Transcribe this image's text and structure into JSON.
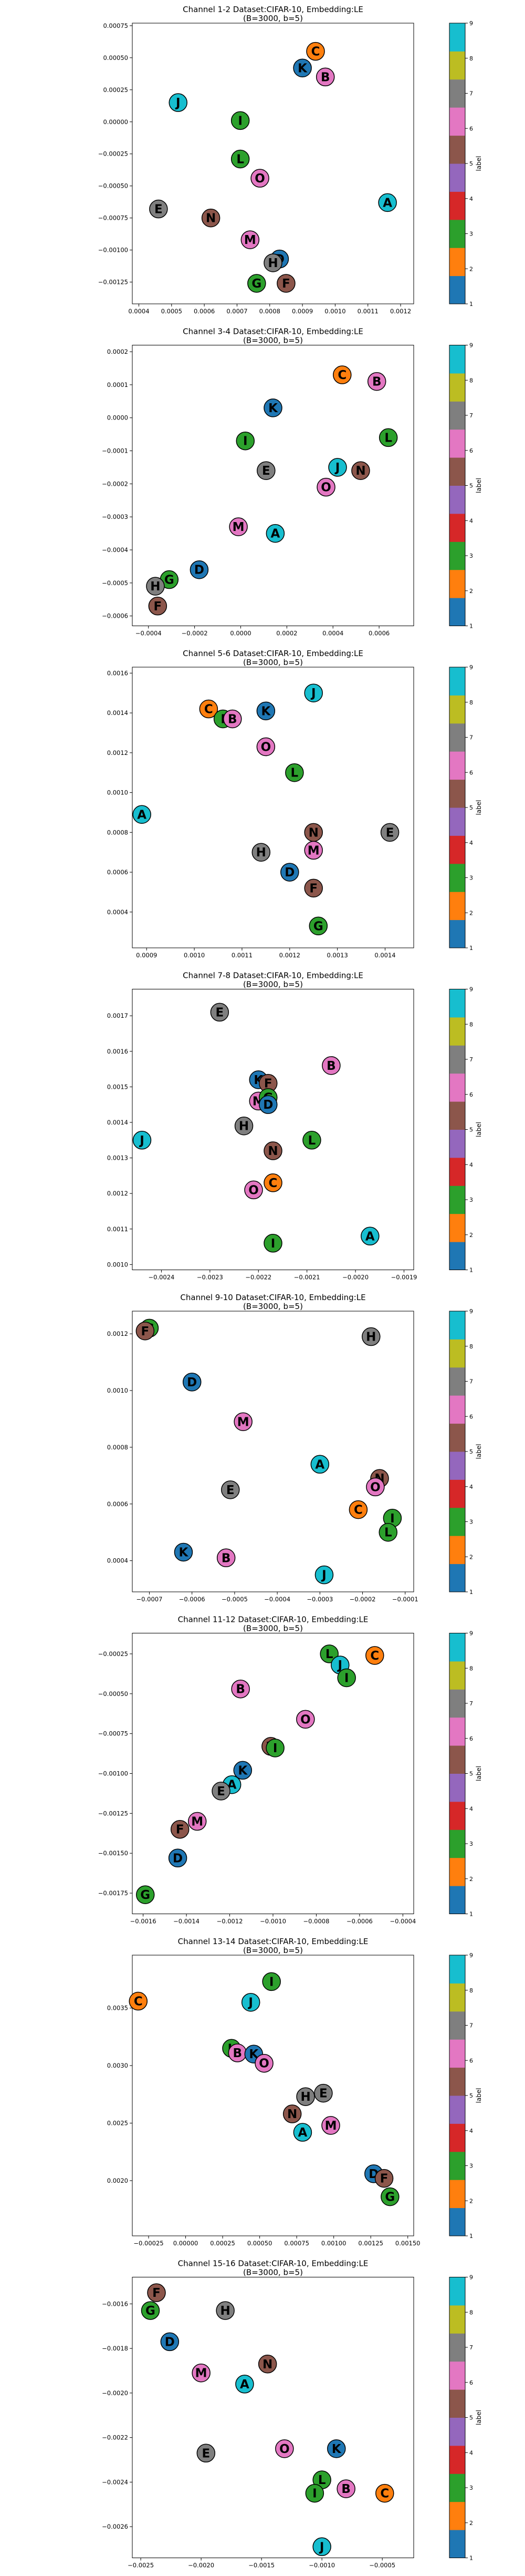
{
  "colorbar": {
    "label": "label",
    "ticks": [
      "1",
      "2",
      "3",
      "4",
      "5",
      "6",
      "7",
      "8",
      "9"
    ],
    "colors": [
      "#1f77b4",
      "#ff7f0e",
      "#2ca02c",
      "#d62728",
      "#9467bd",
      "#8c564b",
      "#e377c2",
      "#7f7f7f",
      "#bcbd22",
      "#17becf"
    ]
  },
  "marker_colors": {
    "A": "#17becf",
    "B": "#e377c2",
    "C": "#ff7f0e",
    "D": "#1f77b4",
    "E": "#7f7f7f",
    "F": "#8c564b",
    "G": "#2ca02c",
    "H": "#7f7f7f",
    "I": "#2ca02c",
    "J": "#17becf",
    "K": "#1f77b4",
    "L": "#2ca02c",
    "M": "#e377c2",
    "N": "#8c564b",
    "O": "#e377c2"
  },
  "chart_data": [
    {
      "type": "scatter",
      "title": "Channel 1-2 Dataset:CIFAR-10, Embedding:LE",
      "subtitle": "(B=3000, b=5)",
      "xlim": [
        0.00038,
        0.00124
      ],
      "ylim": [
        -0.00142,
        0.00077
      ],
      "xticks": [
        0.0004,
        0.0005,
        0.0006,
        0.0007,
        0.0008,
        0.0009,
        0.001,
        0.0011,
        0.0012
      ],
      "xtick_labels": [
        "0.0004",
        "0.0005",
        "0.0006",
        "0.0007",
        "0.0008",
        "0.0009",
        "0.0010",
        "0.0011",
        "0.0012"
      ],
      "yticks": [
        0.00075,
        0.0005,
        0.00025,
        0.0,
        -0.00025,
        -0.0005,
        -0.00075,
        -0.001,
        -0.00125
      ],
      "ytick_labels": [
        "0.00075",
        "0.00050",
        "0.00025",
        "0.00000",
        "−0.00025",
        "−0.00050",
        "−0.00075",
        "−0.00100",
        "−0.00125"
      ],
      "points": [
        {
          "label": "C",
          "x": 0.00094,
          "y": 0.00055
        },
        {
          "label": "K",
          "x": 0.0009,
          "y": 0.00042
        },
        {
          "label": "B",
          "x": 0.00097,
          "y": 0.00035
        },
        {
          "label": "J",
          "x": 0.00052,
          "y": 0.00015
        },
        {
          "label": "I",
          "x": 0.00071,
          "y": 1e-05
        },
        {
          "label": "L",
          "x": 0.00071,
          "y": -0.00029
        },
        {
          "label": "O",
          "x": 0.00077,
          "y": -0.00044
        },
        {
          "label": "A",
          "x": 0.00116,
          "y": -0.00063
        },
        {
          "label": "E",
          "x": 0.00046,
          "y": -0.00068
        },
        {
          "label": "N",
          "x": 0.00062,
          "y": -0.00075
        },
        {
          "label": "M",
          "x": 0.00074,
          "y": -0.00092
        },
        {
          "label": "D",
          "x": 0.00083,
          "y": -0.00107
        },
        {
          "label": "H",
          "x": 0.00081,
          "y": -0.0011
        },
        {
          "label": "G",
          "x": 0.00076,
          "y": -0.00126
        },
        {
          "label": "F",
          "x": 0.00085,
          "y": -0.00126
        }
      ]
    },
    {
      "type": "scatter",
      "title": "Channel 3-4 Dataset:CIFAR-10, Embedding:LE",
      "subtitle": "(B=3000, b=5)",
      "xlim": [
        -0.00047,
        0.00075
      ],
      "ylim": [
        -0.00063,
        0.00022
      ],
      "xticks": [
        -0.0004,
        -0.0002,
        0.0,
        0.0002,
        0.0004,
        0.0006
      ],
      "xtick_labels": [
        "−0.0004",
        "−0.0002",
        "0.0000",
        "0.0002",
        "0.0004",
        "0.0006"
      ],
      "yticks": [
        0.0002,
        0.0001,
        0.0,
        -0.0001,
        -0.0002,
        -0.0003,
        -0.0004,
        -0.0005,
        -0.0006
      ],
      "ytick_labels": [
        "0.0002",
        "0.0001",
        "0.0000",
        "−0.0001",
        "−0.0002",
        "−0.0003",
        "−0.0004",
        "−0.0005",
        "−0.0006"
      ],
      "points": [
        {
          "label": "C",
          "x": 0.00044,
          "y": 0.00013
        },
        {
          "label": "B",
          "x": 0.00059,
          "y": 0.00011
        },
        {
          "label": "K",
          "x": 0.00014,
          "y": 3e-05
        },
        {
          "label": "I",
          "x": 2e-05,
          "y": -7e-05
        },
        {
          "label": "L",
          "x": 0.00064,
          "y": -6e-05
        },
        {
          "label": "J",
          "x": 0.00042,
          "y": -0.00015
        },
        {
          "label": "E",
          "x": 0.00011,
          "y": -0.00016
        },
        {
          "label": "N",
          "x": 0.00052,
          "y": -0.00016
        },
        {
          "label": "O",
          "x": 0.00037,
          "y": -0.00021
        },
        {
          "label": "M",
          "x": -1e-05,
          "y": -0.00033
        },
        {
          "label": "A",
          "x": 0.00015,
          "y": -0.00035
        },
        {
          "label": "D",
          "x": -0.00018,
          "y": -0.00046
        },
        {
          "label": "G",
          "x": -0.00031,
          "y": -0.00049
        },
        {
          "label": "H",
          "x": -0.00037,
          "y": -0.00051
        },
        {
          "label": "F",
          "x": -0.00036,
          "y": -0.00057
        }
      ]
    },
    {
      "type": "scatter",
      "title": "Channel 5-6 Dataset:CIFAR-10, Embedding:LE",
      "subtitle": "(B=3000, b=5)",
      "xlim": [
        0.00087,
        0.00146
      ],
      "ylim": [
        0.00022,
        0.00163
      ],
      "xticks": [
        0.0009,
        0.001,
        0.0011,
        0.0012,
        0.0013,
        0.0014
      ],
      "xtick_labels": [
        "0.0009",
        "0.0010",
        "0.0011",
        "0.0012",
        "0.0013",
        "0.0014"
      ],
      "yticks": [
        0.0016,
        0.0014,
        0.0012,
        0.001,
        0.0008,
        0.0006,
        0.0004
      ],
      "ytick_labels": [
        "0.0016",
        "0.0014",
        "0.0012",
        "0.0010",
        "0.0008",
        "0.0006",
        "0.0004"
      ],
      "points": [
        {
          "label": "J",
          "x": 0.00125,
          "y": 0.0015
        },
        {
          "label": "C",
          "x": 0.00103,
          "y": 0.00142
        },
        {
          "label": "K",
          "x": 0.00115,
          "y": 0.00141
        },
        {
          "label": "I",
          "x": 0.00106,
          "y": 0.00137
        },
        {
          "label": "B",
          "x": 0.00108,
          "y": 0.00137
        },
        {
          "label": "O",
          "x": 0.00115,
          "y": 0.00123
        },
        {
          "label": "L",
          "x": 0.00121,
          "y": 0.0011
        },
        {
          "label": "A",
          "x": 0.00089,
          "y": 0.00089
        },
        {
          "label": "N",
          "x": 0.00125,
          "y": 0.0008
        },
        {
          "label": "E",
          "x": 0.00141,
          "y": 0.0008
        },
        {
          "label": "H",
          "x": 0.00114,
          "y": 0.0007
        },
        {
          "label": "M",
          "x": 0.00125,
          "y": 0.00071
        },
        {
          "label": "D",
          "x": 0.0012,
          "y": 0.0006
        },
        {
          "label": "F",
          "x": 0.00125,
          "y": 0.00052
        },
        {
          "label": "G",
          "x": 0.00126,
          "y": 0.00033
        }
      ]
    },
    {
      "type": "scatter",
      "title": "Channel 7-8 Dataset:CIFAR-10, Embedding:LE",
      "subtitle": "(B=3000, b=5)",
      "xlim": [
        -0.00246,
        -0.00188
      ],
      "ylim": [
        0.000985,
        0.001775
      ],
      "xticks": [
        -0.0024,
        -0.0023,
        -0.0022,
        -0.0021,
        -0.002,
        -0.0019
      ],
      "xtick_labels": [
        "−0.0024",
        "−0.0023",
        "−0.0022",
        "−0.0021",
        "−0.0020",
        "−0.0019"
      ],
      "yticks": [
        0.0017,
        0.0016,
        0.0015,
        0.0014,
        0.0013,
        0.0012,
        0.0011,
        0.001
      ],
      "ytick_labels": [
        "0.0017",
        "0.0016",
        "0.0015",
        "0.0014",
        "0.0013",
        "0.0012",
        "0.0011",
        "0.0010"
      ],
      "points": [
        {
          "label": "E",
          "x": -0.00228,
          "y": 0.00171
        },
        {
          "label": "B",
          "x": -0.00205,
          "y": 0.00156
        },
        {
          "label": "K",
          "x": -0.0022,
          "y": 0.00152
        },
        {
          "label": "F",
          "x": -0.00218,
          "y": 0.00151
        },
        {
          "label": "M",
          "x": -0.0022,
          "y": 0.00146
        },
        {
          "label": "G",
          "x": -0.00218,
          "y": 0.00147
        },
        {
          "label": "D",
          "x": -0.00218,
          "y": 0.00145
        },
        {
          "label": "H",
          "x": -0.00223,
          "y": 0.00139
        },
        {
          "label": "J",
          "x": -0.00244,
          "y": 0.00135
        },
        {
          "label": "L",
          "x": -0.00209,
          "y": 0.00135
        },
        {
          "label": "N",
          "x": -0.00217,
          "y": 0.00132
        },
        {
          "label": "C",
          "x": -0.00217,
          "y": 0.00123
        },
        {
          "label": "O",
          "x": -0.00221,
          "y": 0.00121
        },
        {
          "label": "A",
          "x": -0.00197,
          "y": 0.00108
        },
        {
          "label": "I",
          "x": -0.00217,
          "y": 0.00106
        }
      ]
    },
    {
      "type": "scatter",
      "title": "Channel 9-10 Dataset:CIFAR-10, Embedding:LE",
      "subtitle": "(B=3000, b=5)",
      "xlim": [
        -0.00074,
        -8e-05
      ],
      "ylim": [
        0.00029,
        0.00128
      ],
      "xticks": [
        -0.0007,
        -0.0006,
        -0.0005,
        -0.0004,
        -0.0003,
        -0.0002,
        -0.0001
      ],
      "xtick_labels": [
        "−0.0007",
        "−0.0006",
        "−0.0005",
        "−0.0004",
        "−0.0003",
        "−0.0002",
        "−0.0001"
      ],
      "yticks": [
        0.0012,
        0.001,
        0.0008,
        0.0006,
        0.0004
      ],
      "ytick_labels": [
        "0.0012",
        "0.0010",
        "0.0008",
        "0.0006",
        "0.0004"
      ],
      "points": [
        {
          "label": "G",
          "x": -0.0007,
          "y": 0.00122
        },
        {
          "label": "F",
          "x": -0.00071,
          "y": 0.00121
        },
        {
          "label": "H",
          "x": -0.00018,
          "y": 0.00119
        },
        {
          "label": "D",
          "x": -0.0006,
          "y": 0.00103
        },
        {
          "label": "M",
          "x": -0.00048,
          "y": 0.00089
        },
        {
          "label": "A",
          "x": -0.0003,
          "y": 0.00074
        },
        {
          "label": "N",
          "x": -0.00016,
          "y": 0.00069
        },
        {
          "label": "O",
          "x": -0.00017,
          "y": 0.00066
        },
        {
          "label": "E",
          "x": -0.00051,
          "y": 0.00065
        },
        {
          "label": "C",
          "x": -0.00021,
          "y": 0.00058
        },
        {
          "label": "I",
          "x": -0.00013,
          "y": 0.00055
        },
        {
          "label": "L",
          "x": -0.00014,
          "y": 0.0005
        },
        {
          "label": "K",
          "x": -0.00062,
          "y": 0.00043
        },
        {
          "label": "B",
          "x": -0.00052,
          "y": 0.00041
        },
        {
          "label": "J",
          "x": -0.00029,
          "y": 0.00035
        }
      ]
    },
    {
      "type": "scatter",
      "title": "Channel 11-12 Dataset:CIFAR-10, Embedding:LE",
      "subtitle": "(B=3000, b=5)",
      "xlim": [
        -0.00165,
        -0.00035
      ],
      "ylim": [
        -0.00188,
        -0.00012
      ],
      "xticks": [
        -0.0016,
        -0.0014,
        -0.0012,
        -0.001,
        -0.0008,
        -0.0006,
        -0.0004
      ],
      "xtick_labels": [
        "−0.0016",
        "−0.0014",
        "−0.0012",
        "−0.0010",
        "−0.0008",
        "−0.0006",
        "−0.0004"
      ],
      "yticks": [
        -0.00025,
        -0.0005,
        -0.00075,
        -0.001,
        -0.00125,
        -0.0015,
        -0.00175
      ],
      "ytick_labels": [
        "−0.00025",
        "−0.00050",
        "−0.00075",
        "−0.00100",
        "−0.00125",
        "−0.00150",
        "−0.00175"
      ],
      "points": [
        {
          "label": "L",
          "x": -0.00074,
          "y": -0.00025
        },
        {
          "label": "C",
          "x": -0.00053,
          "y": -0.00026
        },
        {
          "label": "J",
          "x": -0.00069,
          "y": -0.00032
        },
        {
          "label": "I",
          "x": -0.00066,
          "y": -0.0004
        },
        {
          "label": "B",
          "x": -0.00115,
          "y": -0.00047
        },
        {
          "label": "O",
          "x": -0.00085,
          "y": -0.00066
        },
        {
          "label": "N",
          "x": -0.00101,
          "y": -0.00083
        },
        {
          "label": "I",
          "x": -0.00099,
          "y": -0.00084
        },
        {
          "label": "K",
          "x": -0.00114,
          "y": -0.00098
        },
        {
          "label": "A",
          "x": -0.00119,
          "y": -0.00107
        },
        {
          "label": "E",
          "x": -0.00124,
          "y": -0.00111
        },
        {
          "label": "M",
          "x": -0.00135,
          "y": -0.0013
        },
        {
          "label": "F",
          "x": -0.00143,
          "y": -0.00135
        },
        {
          "label": "D",
          "x": -0.00144,
          "y": -0.00153
        },
        {
          "label": "G",
          "x": -0.00159,
          "y": -0.00176
        }
      ]
    },
    {
      "type": "scatter",
      "title": "Channel 13-14 Dataset:CIFAR-10, Embedding:LE",
      "subtitle": "(B=3000, b=5)",
      "xlim": [
        -0.00036,
        0.00154
      ],
      "ylim": [
        0.00152,
        0.00396
      ],
      "xticks": [
        -0.00025,
        0.0,
        0.00025,
        0.0005,
        0.00075,
        0.001,
        0.00125,
        0.0015
      ],
      "xtick_labels": [
        "−0.00025",
        "0.00000",
        "0.00025",
        "0.00050",
        "0.00075",
        "0.00100",
        "0.00125",
        "0.00150"
      ],
      "yticks": [
        0.0035,
        0.003,
        0.0025,
        0.002
      ],
      "ytick_labels": [
        "0.0035",
        "0.0030",
        "0.0025",
        "0.0020"
      ],
      "points": [
        {
          "label": "I",
          "x": 0.00058,
          "y": 0.00373
        },
        {
          "label": "C",
          "x": -0.00032,
          "y": 0.00356
        },
        {
          "label": "J",
          "x": 0.00044,
          "y": 0.00355
        },
        {
          "label": "L",
          "x": 0.00031,
          "y": 0.00315
        },
        {
          "label": "B",
          "x": 0.00035,
          "y": 0.00311
        },
        {
          "label": "K",
          "x": 0.00046,
          "y": 0.0031
        },
        {
          "label": "O",
          "x": 0.00053,
          "y": 0.00302
        },
        {
          "label": "E",
          "x": 0.00093,
          "y": 0.00276
        },
        {
          "label": "H",
          "x": 0.00081,
          "y": 0.00273
        },
        {
          "label": "N",
          "x": 0.00072,
          "y": 0.00258
        },
        {
          "label": "M",
          "x": 0.00098,
          "y": 0.00248
        },
        {
          "label": "A",
          "x": 0.00079,
          "y": 0.00242
        },
        {
          "label": "D",
          "x": 0.00127,
          "y": 0.00206
        },
        {
          "label": "F",
          "x": 0.00134,
          "y": 0.00202
        },
        {
          "label": "G",
          "x": 0.00138,
          "y": 0.00186
        }
      ]
    },
    {
      "type": "scatter",
      "title": "Channel 15-16 Dataset:CIFAR-10, Embedding:LE",
      "subtitle": "(B=3000, b=5)",
      "xlim": [
        -0.00257,
        -0.00024
      ],
      "ylim": [
        -0.00274,
        -0.00148
      ],
      "xticks": [
        -0.0025,
        -0.002,
        -0.0015,
        -0.001,
        -0.0005
      ],
      "xtick_labels": [
        "−0.0025",
        "−0.0020",
        "−0.0015",
        "−0.0010",
        "−0.0005"
      ],
      "yticks": [
        -0.0016,
        -0.0018,
        -0.002,
        -0.0022,
        -0.0024,
        -0.0026
      ],
      "ytick_labels": [
        "−0.0016",
        "−0.0018",
        "−0.0020",
        "−0.0022",
        "−0.0024",
        "−0.0026"
      ],
      "points": [
        {
          "label": "F",
          "x": -0.00237,
          "y": -0.00155
        },
        {
          "label": "G",
          "x": -0.00242,
          "y": -0.00163
        },
        {
          "label": "H",
          "x": -0.0018,
          "y": -0.00163
        },
        {
          "label": "D",
          "x": -0.00226,
          "y": -0.00177
        },
        {
          "label": "N",
          "x": -0.00145,
          "y": -0.00187
        },
        {
          "label": "M",
          "x": -0.002,
          "y": -0.00191
        },
        {
          "label": "A",
          "x": -0.00164,
          "y": -0.00196
        },
        {
          "label": "O",
          "x": -0.00131,
          "y": -0.00225
        },
        {
          "label": "K",
          "x": -0.00088,
          "y": -0.00225
        },
        {
          "label": "E",
          "x": -0.00196,
          "y": -0.00227
        },
        {
          "label": "L",
          "x": -0.001,
          "y": -0.00239
        },
        {
          "label": "B",
          "x": -0.0008,
          "y": -0.00243
        },
        {
          "label": "I",
          "x": -0.00106,
          "y": -0.00245
        },
        {
          "label": "C",
          "x": -0.00048,
          "y": -0.00245
        },
        {
          "label": "J",
          "x": -0.001,
          "y": -0.00269
        }
      ]
    }
  ]
}
